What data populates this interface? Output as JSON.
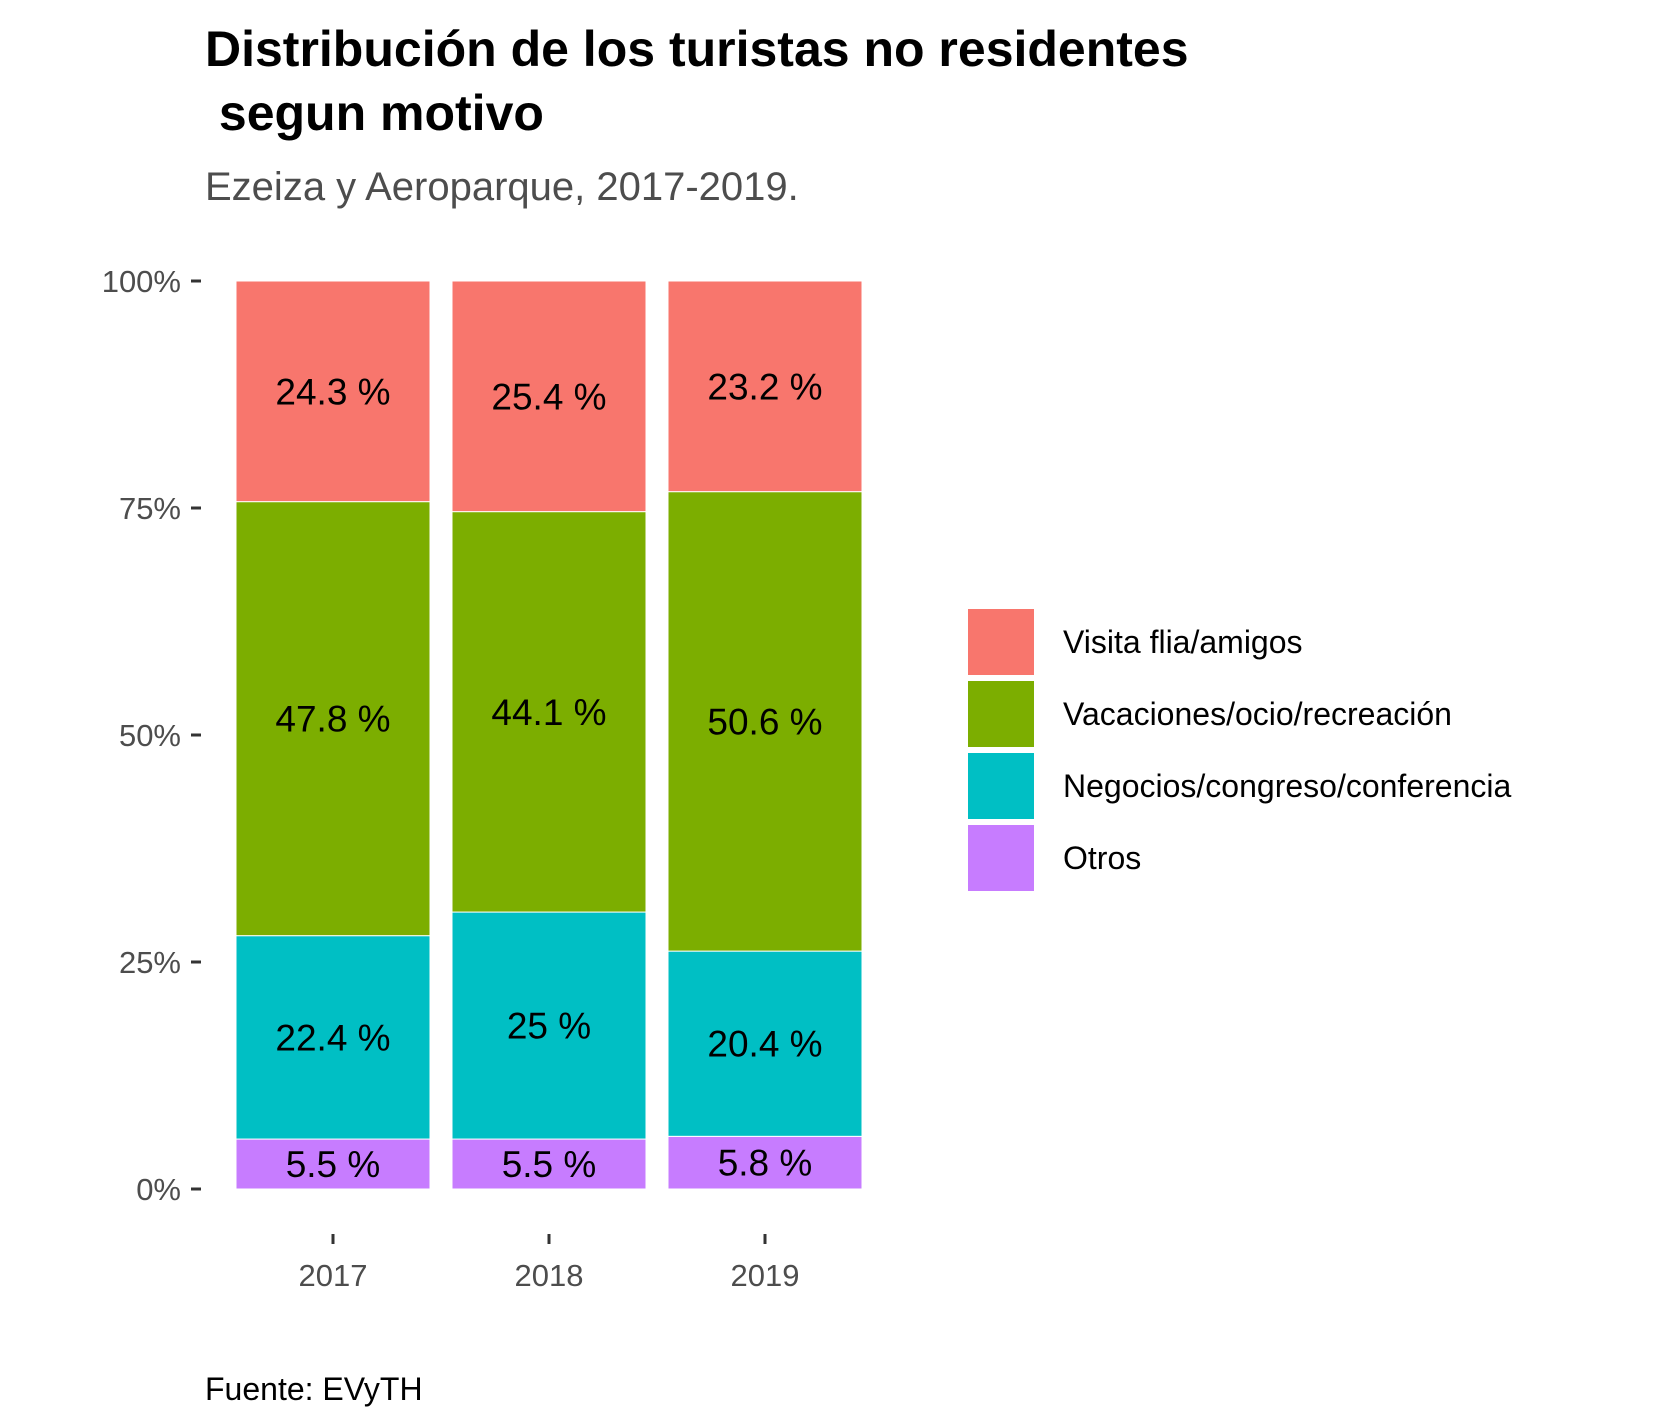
{
  "chart_data": {
    "type": "bar",
    "stacked": true,
    "orientation": "vertical",
    "title_lines": [
      "Distribución de los turistas no residentes",
      " segun motivo"
    ],
    "subtitle": "Ezeiza y Aeroparque, 2017-2019.",
    "caption": "Fuente: EVyTH",
    "categories": [
      "2017",
      "2018",
      "2019"
    ],
    "ylim": [
      0,
      100
    ],
    "yticks": [
      {
        "value": 0,
        "label": "0%"
      },
      {
        "value": 25,
        "label": "25%"
      },
      {
        "value": 50,
        "label": "50%"
      },
      {
        "value": 75,
        "label": "75%"
      },
      {
        "value": 100,
        "label": "100%"
      }
    ],
    "grid": false,
    "legend_position": "right",
    "series": [
      {
        "name": "Otros",
        "color": "#C77CFF",
        "values": [
          5.5,
          5.5,
          5.8
        ],
        "labels": [
          "5.5 %",
          "5.5 %",
          "5.8 %"
        ]
      },
      {
        "name": "Negocios/congreso/conferencia",
        "color": "#00BFC4",
        "values": [
          22.4,
          25.0,
          20.4
        ],
        "labels": [
          "22.4 %",
          "25 %",
          "20.4 %"
        ]
      },
      {
        "name": "Vacaciones/ocio/recreación",
        "color": "#7CAE00",
        "values": [
          47.8,
          44.1,
          50.6
        ],
        "labels": [
          "47.8 %",
          "44.1 %",
          "50.6 %"
        ]
      },
      {
        "name": "Visita flia/amigos",
        "color": "#F8766D",
        "values": [
          24.3,
          25.4,
          23.2
        ],
        "labels": [
          "24.3 %",
          "25.4 %",
          "23.2 %"
        ]
      }
    ],
    "legend_order": [
      "Visita flia/amigos",
      "Vacaciones/ocio/recreación",
      "Negocios/congreso/conferencia",
      "Otros"
    ]
  }
}
